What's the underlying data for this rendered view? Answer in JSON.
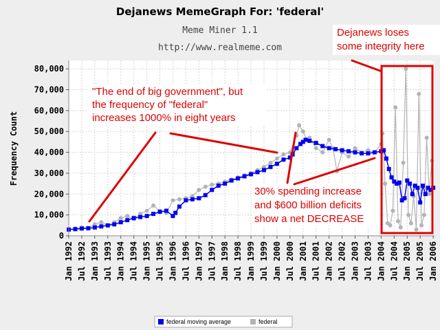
{
  "chart_data": {
    "type": "line",
    "title": "Dejanews MemeGraph For: 'federal'",
    "subtitle": "Meme Miner 1.1",
    "url": "http://www.realmeme.com",
    "ylabel": "Frequency Count",
    "xlabel": "",
    "ylim": [
      0,
      84000
    ],
    "xlim": [
      1992.0,
      2006.05
    ],
    "grid": true,
    "legend_position": "bottom",
    "y_ticks": [
      0,
      10000,
      20000,
      30000,
      40000,
      50000,
      60000,
      70000,
      80000
    ],
    "y_tick_labels": [
      "0",
      "10,000",
      "20,000",
      "30,000",
      "40,000",
      "50,000",
      "60,000",
      "70,000",
      "80,000"
    ],
    "x_ticks": [
      1992,
      1992.5,
      1993,
      1993.5,
      1994,
      1994.5,
      1995,
      1995.5,
      1996,
      1996.5,
      1997,
      1997.5,
      1998,
      1998.5,
      1999,
      1999.5,
      2000,
      2000.5,
      2001,
      2001.5,
      2002,
      2002.5,
      2003,
      2003.5,
      2004,
      2004.5,
      2005,
      2005.5,
      2006
    ],
    "x_tick_labels": [
      "Jan 1992",
      "Jul 1992",
      "Jan 1993",
      "Jul 1993",
      "Jan 1994",
      "Jul 1994",
      "Jan 1995",
      "Jul 1995",
      "Jan 1996",
      "Jul 1996",
      "Jan 1997",
      "Jul 1997",
      "Jan 1998",
      "Jul 1998",
      "Jan 1999",
      "Jul 1999",
      "Jan 2000",
      "Jul 2000",
      "Jan 2001",
      "Jul 2001",
      "Jan 2002",
      "Jul 2002",
      "Jan 2003",
      "Jul 2003",
      "Jan 2004",
      "Jul 2004",
      "Jan 2005",
      "Jul 2005",
      "Jan 2006"
    ],
    "series": [
      {
        "name": "federal moving average",
        "color": "#0000ee",
        "marker": "square",
        "x": [
          1992.0,
          1992.25,
          1992.5,
          1992.75,
          1993.0,
          1993.25,
          1993.5,
          1993.75,
          1994.0,
          1994.25,
          1994.5,
          1994.75,
          1995.0,
          1995.25,
          1995.5,
          1995.75,
          1996.0,
          1996.1,
          1996.25,
          1996.5,
          1996.75,
          1997.0,
          1997.25,
          1997.5,
          1997.75,
          1998.0,
          1998.25,
          1998.5,
          1998.75,
          1999.0,
          1999.25,
          1999.5,
          1999.75,
          2000.0,
          2000.25,
          2000.5,
          2000.6,
          2000.75,
          2000.9,
          2001.0,
          2001.1,
          2001.25,
          2001.5,
          2001.75,
          2002.0,
          2002.25,
          2002.5,
          2002.75,
          2003.0,
          2003.25,
          2003.5,
          2003.75,
          2004.0,
          2004.1,
          2004.2,
          2004.3,
          2004.4,
          2004.5,
          2004.6,
          2004.7,
          2004.8,
          2004.9,
          2005.0,
          2005.1,
          2005.2,
          2005.3,
          2005.4,
          2005.5,
          2005.6,
          2005.7,
          2005.8,
          2005.9,
          2006.0
        ],
        "y": [
          3000,
          3200,
          3500,
          3600,
          4000,
          4500,
          5000,
          5500,
          6500,
          7500,
          8500,
          9000,
          9500,
          10500,
          11500,
          12000,
          9500,
          11000,
          14000,
          17000,
          17500,
          18000,
          19500,
          22000,
          24000,
          25000,
          26500,
          27500,
          28500,
          29500,
          30500,
          31500,
          33000,
          34500,
          36500,
          37500,
          39000,
          42000,
          44000,
          45000,
          46000,
          45500,
          44500,
          43000,
          42000,
          41500,
          41000,
          40500,
          40000,
          39500,
          39500,
          40000,
          40500,
          41000,
          37000,
          32000,
          28000,
          26000,
          25000,
          25500,
          17000,
          18000,
          26500,
          25000,
          20000,
          24000,
          23000,
          16000,
          24000,
          20000,
          23000,
          22000,
          23000
        ]
      },
      {
        "name": "federal",
        "color": "#b3b3b3",
        "marker": "circle",
        "x": [
          1992.0,
          1992.25,
          1992.5,
          1992.75,
          1993.0,
          1993.25,
          1993.5,
          1993.75,
          1994.0,
          1994.25,
          1994.5,
          1994.75,
          1995.0,
          1995.25,
          1995.5,
          1995.75,
          1996.0,
          1996.25,
          1996.5,
          1996.75,
          1997.0,
          1997.25,
          1997.5,
          1997.75,
          1998.0,
          1998.25,
          1998.5,
          1998.75,
          1999.0,
          1999.25,
          1999.5,
          1999.75,
          2000.0,
          2000.25,
          2000.5,
          2000.75,
          2000.85,
          2001.0,
          2001.15,
          2001.25,
          2001.5,
          2001.75,
          2002.0,
          2002.15,
          2002.3,
          2002.5,
          2002.75,
          2003.0,
          2003.25,
          2003.5,
          2003.75,
          2004.0,
          2004.05,
          2004.15,
          2004.25,
          2004.35,
          2004.45,
          2004.55,
          2004.65,
          2004.75,
          2004.85,
          2004.95,
          2005.05,
          2005.15,
          2005.25,
          2005.35,
          2005.45,
          2005.55,
          2005.65,
          2005.75,
          2005.85,
          2005.95
        ],
        "y": [
          3000,
          3500,
          4000,
          3800,
          5500,
          6500,
          5000,
          6500,
          8500,
          9500,
          8000,
          10500,
          12000,
          14500,
          12000,
          11000,
          17000,
          17500,
          18000,
          19000,
          22000,
          23500,
          24500,
          25000,
          26000,
          27000,
          28000,
          29000,
          30000,
          31500,
          33000,
          35000,
          37000,
          39000,
          40000,
          48000,
          53000,
          50000,
          46000,
          47000,
          42000,
          40000,
          46000,
          42000,
          31000,
          40000,
          38000,
          42000,
          40000,
          41000,
          40000,
          44000,
          49000,
          25000,
          6000,
          5000,
          12000,
          61500,
          7000,
          4000,
          35000,
          80000,
          10000,
          6000,
          19000,
          3000,
          68000,
          5000,
          10000,
          47000,
          20000,
          36000
        ]
      }
    ],
    "annotations": [
      {
        "lines": [
          "\"The end of big government\", but",
          "the frequency of \"federal\"",
          "increases 1000% in eight years"
        ],
        "color": "#dd0000"
      },
      {
        "lines": [
          "30% spending increase",
          "and $600 billion deficits",
          "show a net DECREASE"
        ],
        "color": "#dd0000"
      },
      {
        "lines": [
          "Dejanews loses",
          "some integrity here"
        ],
        "color": "#dd0000"
      }
    ]
  }
}
